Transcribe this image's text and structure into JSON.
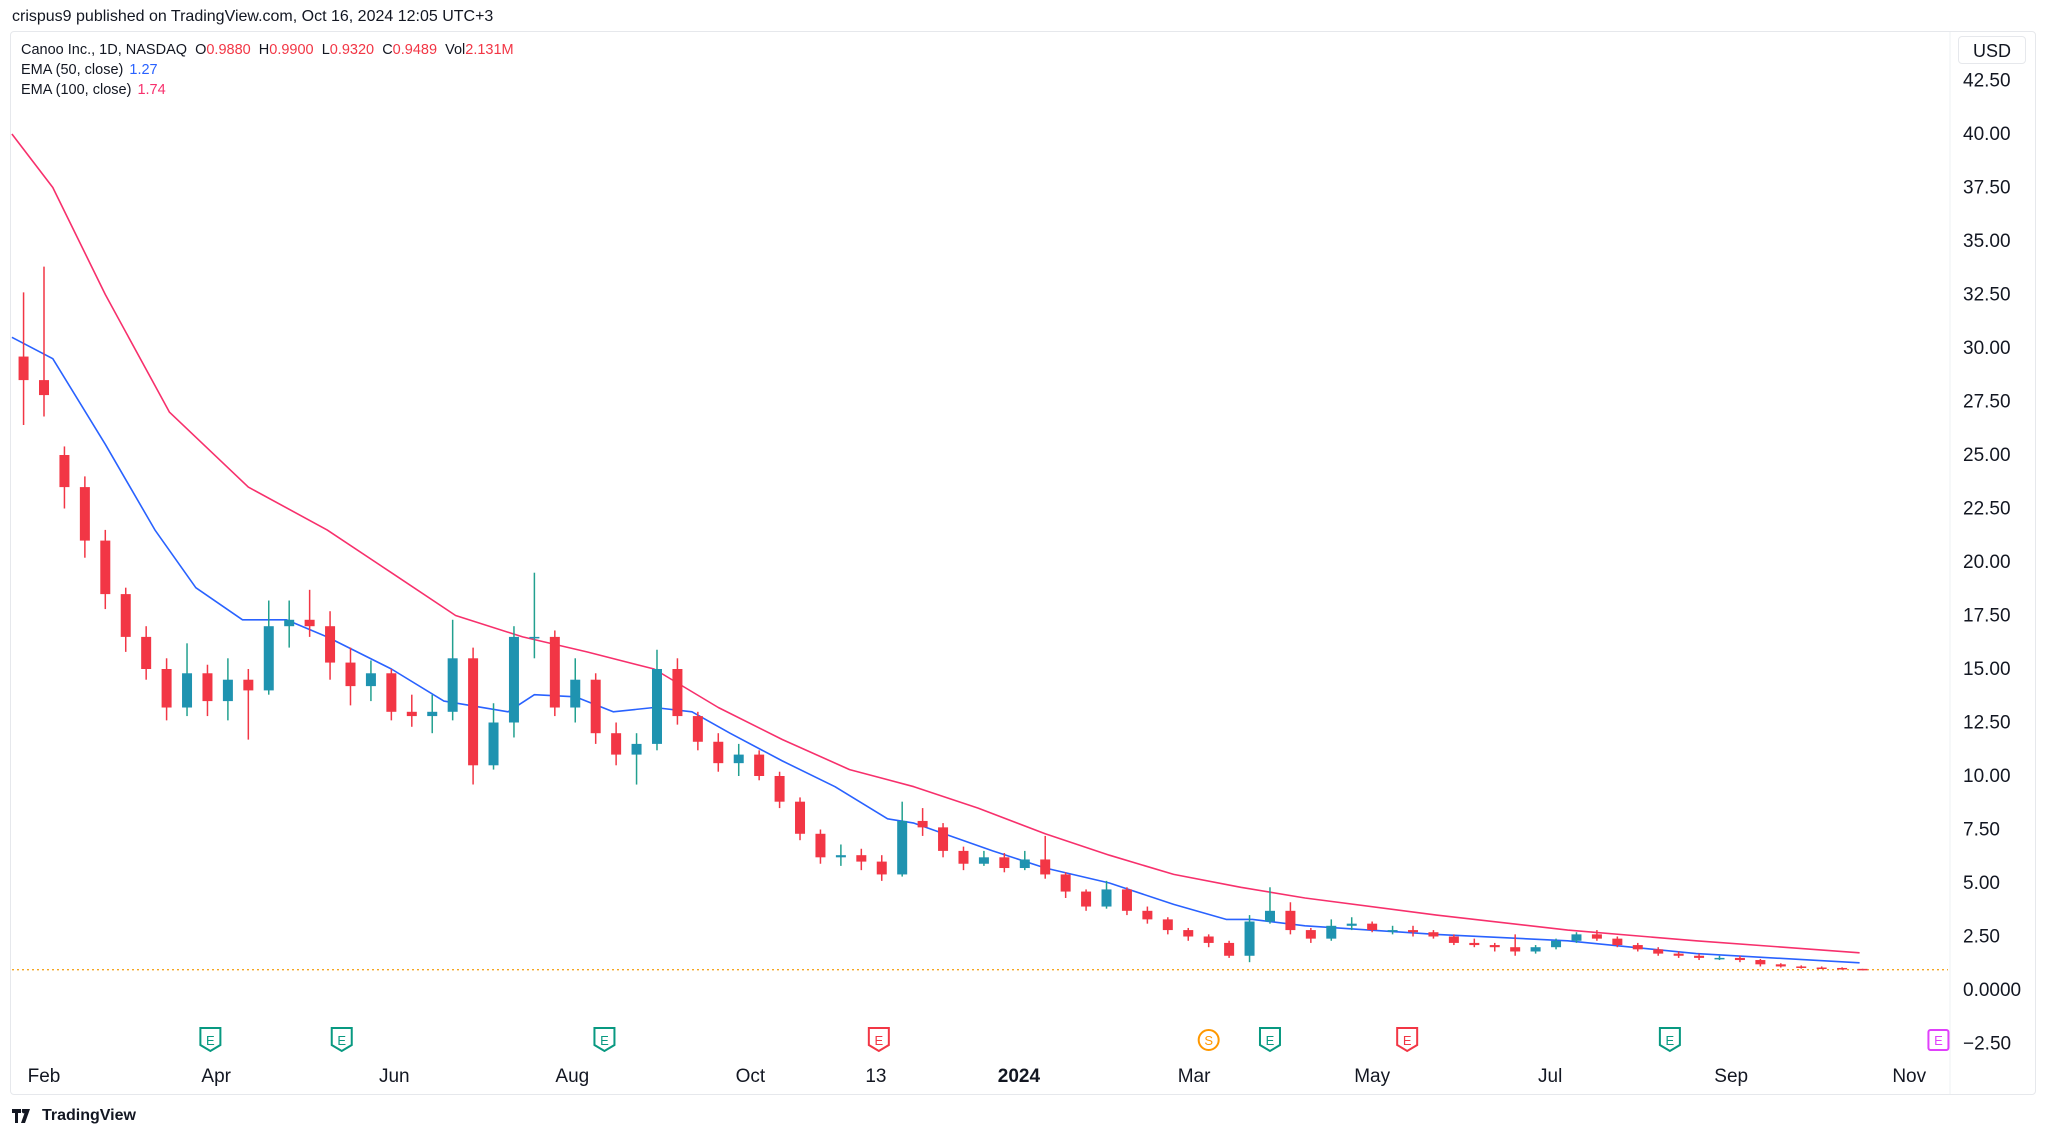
{
  "header": {
    "published": "crispus9 published on TradingView.com, Oct 16, 2024 12:05 UTC+3"
  },
  "legend": {
    "symbol": "Canoo Inc., 1D, NASDAQ",
    "o_label": "O",
    "o": "0.9880",
    "h_label": "H",
    "h": "0.9900",
    "l_label": "L",
    "l": "0.9320",
    "c_label": "C",
    "c": "0.9489",
    "vol_label": "Vol",
    "vol": "2.131M",
    "ema50_label": "EMA (50, close)",
    "ema50": "1.27",
    "ema100_label": "EMA (100, close)",
    "ema100": "1.74"
  },
  "currency": "USD",
  "footer": {
    "brand": "TradingView"
  },
  "colors": {
    "up": "#1f93b0",
    "up_wick": "#22a08f",
    "down": "#f23645",
    "ema50": "#2962ff",
    "ema100": "#f7306c",
    "price_line": "#f5a623"
  },
  "chart_data": {
    "type": "candlestick",
    "title": "",
    "xlabel": "",
    "ylabel": "",
    "ylim": [
      -2.5,
      42.5
    ],
    "xlim": [
      "2023-01-18",
      "2024-11-20"
    ],
    "grid": false,
    "yticks": [
      "42.50",
      "40.00",
      "37.50",
      "35.00",
      "32.50",
      "30.00",
      "27.50",
      "25.00",
      "22.50",
      "20.00",
      "17.50",
      "15.00",
      "12.50",
      "10.00",
      "7.50",
      "5.00",
      "2.50",
      "0.0000",
      "−2.50"
    ],
    "ytick_values": [
      42.5,
      40,
      37.5,
      35,
      32.5,
      30,
      27.5,
      25,
      22.5,
      20,
      17.5,
      15,
      12.5,
      10,
      7.5,
      5,
      2.5,
      0,
      -2.5
    ],
    "xticks": [
      {
        "label": "Feb",
        "date": "2023-02-01",
        "bold": false
      },
      {
        "label": "Apr",
        "date": "2023-04-01",
        "bold": false
      },
      {
        "label": "Jun",
        "date": "2023-06-01",
        "bold": false
      },
      {
        "label": "Aug",
        "date": "2023-08-01",
        "bold": false
      },
      {
        "label": "Oct",
        "date": "2023-10-01",
        "bold": false
      },
      {
        "label": "13",
        "date": "2023-11-13",
        "bold": false
      },
      {
        "label": "2024",
        "date": "2024-01-01",
        "bold": true
      },
      {
        "label": "Mar",
        "date": "2024-03-01",
        "bold": false
      },
      {
        "label": "May",
        "date": "2024-05-01",
        "bold": false
      },
      {
        "label": "Jul",
        "date": "2024-07-01",
        "bold": false
      },
      {
        "label": "Sep",
        "date": "2024-09-01",
        "bold": false
      },
      {
        "label": "Nov",
        "date": "2024-11-01",
        "bold": false
      }
    ],
    "candle_start": "2023-01-23",
    "candle_interval_days": 7,
    "candles_ohlc": [
      [
        29.6,
        32.6,
        26.4,
        28.5
      ],
      [
        28.5,
        33.8,
        26.8,
        27.8
      ],
      [
        25,
        25.4,
        22.5,
        23.5
      ],
      [
        23.5,
        24,
        20.2,
        21
      ],
      [
        21,
        21.5,
        17.8,
        18.5
      ],
      [
        18.5,
        18.8,
        15.8,
        16.5
      ],
      [
        16.5,
        17,
        14.5,
        15
      ],
      [
        15,
        15.5,
        12.6,
        13.2
      ],
      [
        13.2,
        16.2,
        12.8,
        14.8
      ],
      [
        14.8,
        15.2,
        12.8,
        13.5
      ],
      [
        13.5,
        15.5,
        12.6,
        14.5
      ],
      [
        14.5,
        15,
        11.7,
        14
      ],
      [
        14,
        18.2,
        13.8,
        17
      ],
      [
        17,
        18.2,
        16,
        17.3
      ],
      [
        17.3,
        18.7,
        16.5,
        17
      ],
      [
        17,
        17.7,
        14.5,
        15.3
      ],
      [
        15.3,
        16,
        13.3,
        14.2
      ],
      [
        14.2,
        15.4,
        13.5,
        14.8
      ],
      [
        14.8,
        15,
        12.6,
        13
      ],
      [
        13,
        13.8,
        12.3,
        12.8
      ],
      [
        12.8,
        13.8,
        12,
        13
      ],
      [
        13,
        17.3,
        12.6,
        15.5
      ],
      [
        15.5,
        16,
        9.6,
        10.5
      ],
      [
        10.5,
        13.4,
        10.3,
        12.5
      ],
      [
        12.5,
        17,
        11.8,
        16.5
      ],
      [
        16.5,
        19.5,
        15.5,
        16.5
      ],
      [
        16.5,
        16.8,
        12.8,
        13.2
      ],
      [
        13.2,
        15.5,
        12.5,
        14.5
      ],
      [
        14.5,
        14.8,
        11.5,
        12
      ],
      [
        12,
        12.5,
        10.5,
        11
      ],
      [
        11,
        12,
        9.6,
        11.5
      ],
      [
        11.5,
        15.9,
        11.2,
        15
      ],
      [
        15,
        15.5,
        12.4,
        12.8
      ],
      [
        12.8,
        13,
        11.2,
        11.6
      ],
      [
        11.6,
        12,
        10.2,
        10.6
      ],
      [
        10.6,
        11.5,
        10,
        11
      ],
      [
        11,
        11.2,
        9.8,
        10
      ],
      [
        10,
        10.2,
        8.5,
        8.8
      ],
      [
        8.8,
        9,
        7,
        7.3
      ],
      [
        7.3,
        7.5,
        5.9,
        6.2
      ],
      [
        6.2,
        6.8,
        5.8,
        6.3
      ],
      [
        6.3,
        6.6,
        5.6,
        6
      ],
      [
        6,
        6.3,
        5.1,
        5.4
      ],
      [
        5.4,
        8.8,
        5.3,
        7.9
      ],
      [
        7.9,
        8.5,
        7.2,
        7.6
      ],
      [
        7.6,
        7.8,
        6.2,
        6.5
      ],
      [
        6.5,
        6.7,
        5.6,
        5.9
      ],
      [
        5.9,
        6.5,
        5.8,
        6.2
      ],
      [
        6.2,
        6.4,
        5.5,
        5.7
      ],
      [
        5.7,
        6.5,
        5.6,
        6.1
      ],
      [
        6.1,
        7.2,
        5.2,
        5.4
      ],
      [
        5.4,
        5.5,
        4.3,
        4.6
      ],
      [
        4.6,
        4.7,
        3.7,
        3.9
      ],
      [
        3.9,
        5.1,
        3.8,
        4.7
      ],
      [
        4.7,
        4.8,
        3.5,
        3.7
      ],
      [
        3.7,
        3.9,
        3.1,
        3.3
      ],
      [
        3.3,
        3.4,
        2.6,
        2.8
      ],
      [
        2.8,
        2.9,
        2.3,
        2.5
      ],
      [
        2.5,
        2.6,
        2.0,
        2.2
      ],
      [
        2.2,
        2.3,
        1.5,
        1.6
      ],
      [
        1.6,
        3.5,
        1.3,
        3.2
      ],
      [
        3.2,
        4.8,
        3.1,
        3.7
      ],
      [
        3.7,
        4.1,
        2.6,
        2.8
      ],
      [
        2.8,
        2.9,
        2.2,
        2.4
      ],
      [
        2.4,
        3.3,
        2.3,
        3.0
      ],
      [
        3.0,
        3.4,
        2.8,
        3.1
      ],
      [
        3.1,
        3.2,
        2.7,
        2.8
      ],
      [
        2.8,
        3.0,
        2.6,
        2.8
      ],
      [
        2.8,
        3.0,
        2.5,
        2.7
      ],
      [
        2.7,
        2.8,
        2.4,
        2.5
      ],
      [
        2.5,
        2.6,
        2.1,
        2.2
      ],
      [
        2.2,
        2.4,
        2.0,
        2.1
      ],
      [
        2.1,
        2.2,
        1.8,
        2.0
      ],
      [
        2.0,
        2.6,
        1.6,
        1.8
      ],
      [
        1.8,
        2.1,
        1.7,
        2.0
      ],
      [
        2.0,
        2.4,
        1.9,
        2.3
      ],
      [
        2.3,
        2.7,
        2.2,
        2.6
      ],
      [
        2.6,
        2.8,
        2.3,
        2.4
      ],
      [
        2.4,
        2.5,
        2.0,
        2.1
      ],
      [
        2.1,
        2.2,
        1.8,
        1.9
      ],
      [
        1.9,
        2.0,
        1.6,
        1.7
      ],
      [
        1.7,
        1.8,
        1.5,
        1.6
      ],
      [
        1.6,
        1.7,
        1.4,
        1.5
      ],
      [
        1.5,
        1.6,
        1.4,
        1.5
      ],
      [
        1.5,
        1.6,
        1.3,
        1.4
      ],
      [
        1.4,
        1.45,
        1.1,
        1.2
      ],
      [
        1.2,
        1.25,
        1.05,
        1.1
      ],
      [
        1.1,
        1.15,
        1.0,
        1.05
      ],
      [
        1.05,
        1.1,
        0.98,
        1.03
      ],
      [
        1.03,
        1.06,
        0.95,
        1.0
      ],
      [
        0.988,
        0.99,
        0.932,
        0.9489
      ]
    ],
    "series": [
      {
        "name": "EMA (50, close)",
        "points": [
          [
            "2023-01-21",
            30.5
          ],
          [
            "2023-02-04",
            29.5
          ],
          [
            "2023-02-22",
            25.5
          ],
          [
            "2023-03-11",
            21.5
          ],
          [
            "2023-03-25",
            18.8
          ],
          [
            "2023-04-10",
            17.3
          ],
          [
            "2023-04-25",
            17.3
          ],
          [
            "2023-05-09",
            16.5
          ],
          [
            "2023-05-31",
            15
          ],
          [
            "2023-06-18",
            13.5
          ],
          [
            "2023-07-10",
            13
          ],
          [
            "2023-07-19",
            13.8
          ],
          [
            "2023-08-02",
            13.7
          ],
          [
            "2023-08-15",
            13
          ],
          [
            "2023-08-29",
            13.2
          ],
          [
            "2023-09-11",
            13
          ],
          [
            "2023-09-24",
            12
          ],
          [
            "2023-10-12",
            10.7
          ],
          [
            "2023-10-30",
            9.5
          ],
          [
            "2023-11-17",
            8
          ],
          [
            "2023-11-26",
            7.8
          ],
          [
            "2023-12-23",
            6.5
          ],
          [
            "2024-01-10",
            5.7
          ],
          [
            "2024-02-01",
            5
          ],
          [
            "2024-02-23",
            4
          ],
          [
            "2024-03-12",
            3.3
          ],
          [
            "2024-03-21",
            3.3
          ],
          [
            "2024-04-08",
            3.0
          ],
          [
            "2024-05-23",
            2.6
          ],
          [
            "2024-07-07",
            2.3
          ],
          [
            "2024-08-20",
            1.7
          ],
          [
            "2024-10-15",
            1.27
          ]
        ]
      },
      {
        "name": "EMA (100, close)",
        "points": [
          [
            "2023-01-21",
            40
          ],
          [
            "2023-02-04",
            37.5
          ],
          [
            "2023-02-22",
            32.5
          ],
          [
            "2023-03-16",
            27
          ],
          [
            "2023-04-12",
            23.5
          ],
          [
            "2023-05-09",
            21.5
          ],
          [
            "2023-05-31",
            19.5
          ],
          [
            "2023-06-22",
            17.5
          ],
          [
            "2023-07-15",
            16.5
          ],
          [
            "2023-08-06",
            15.8
          ],
          [
            "2023-08-29",
            15
          ],
          [
            "2023-09-20",
            13.2
          ],
          [
            "2023-10-12",
            11.7
          ],
          [
            "2023-11-04",
            10.3
          ],
          [
            "2023-11-26",
            9.5
          ],
          [
            "2023-12-18",
            8.5
          ],
          [
            "2024-01-10",
            7.3
          ],
          [
            "2024-02-01",
            6.3
          ],
          [
            "2024-02-23",
            5.4
          ],
          [
            "2024-03-17",
            4.8
          ],
          [
            "2024-04-08",
            4.3
          ],
          [
            "2024-05-23",
            3.5
          ],
          [
            "2024-07-07",
            2.8
          ],
          [
            "2024-08-20",
            2.3
          ],
          [
            "2024-10-15",
            1.74
          ]
        ]
      }
    ],
    "last_price_line": 0.9489,
    "events": [
      {
        "label": "E",
        "date": "2023-03-30",
        "type": "earnings-beat"
      },
      {
        "label": "E",
        "date": "2023-05-14",
        "type": "earnings-beat"
      },
      {
        "label": "E",
        "date": "2023-08-12",
        "type": "earnings-beat"
      },
      {
        "label": "E",
        "date": "2023-11-14",
        "type": "earnings-miss"
      },
      {
        "label": "S",
        "date": "2024-03-06",
        "type": "split"
      },
      {
        "label": "E",
        "date": "2024-03-27",
        "type": "earnings-beat"
      },
      {
        "label": "E",
        "date": "2024-05-13",
        "type": "earnings-miss"
      },
      {
        "label": "E",
        "date": "2024-08-11",
        "type": "earnings-beat"
      },
      {
        "label": "E",
        "date": "2024-11-11",
        "type": "earnings-upcoming"
      }
    ]
  }
}
